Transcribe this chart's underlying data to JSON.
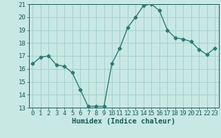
{
  "x": [
    0,
    1,
    2,
    3,
    4,
    5,
    6,
    7,
    8,
    9,
    10,
    11,
    12,
    13,
    14,
    15,
    16,
    17,
    18,
    19,
    20,
    21,
    22,
    23
  ],
  "y": [
    16.4,
    16.9,
    17.0,
    16.3,
    16.2,
    15.7,
    14.4,
    13.1,
    13.1,
    13.1,
    16.4,
    17.6,
    19.2,
    20.0,
    20.9,
    21.0,
    20.5,
    19.0,
    18.4,
    18.3,
    18.1,
    17.5,
    17.1,
    17.6
  ],
  "line_color": "#2d7a70",
  "marker": "D",
  "marker_size": 2.5,
  "bg_color": "#c8e8e4",
  "grid_color": "#a0ccc8",
  "xlabel": "Humidex (Indice chaleur)",
  "ylim": [
    13,
    21
  ],
  "xlim": [
    -0.5,
    23.5
  ],
  "yticks": [
    13,
    14,
    15,
    16,
    17,
    18,
    19,
    20,
    21
  ],
  "xticks": [
    0,
    1,
    2,
    3,
    4,
    5,
    6,
    7,
    8,
    9,
    10,
    11,
    12,
    13,
    14,
    15,
    16,
    17,
    18,
    19,
    20,
    21,
    22,
    23
  ],
  "tick_fontsize": 6.5,
  "xlabel_fontsize": 7.5,
  "tick_color": "#1a5a54",
  "label_color": "#1a5a54",
  "spine_color": "#1a5a54"
}
